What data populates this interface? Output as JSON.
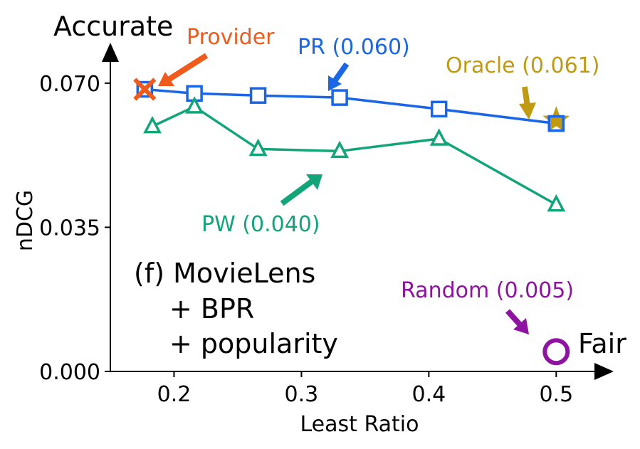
{
  "chart_data": {
    "type": "scatter",
    "title": "",
    "panel_label": "(f) MovieLens",
    "panel_label_lines": [
      "+ BPR",
      "+ popularity"
    ],
    "xlabel": "Least Ratio",
    "ylabel": "nDCG",
    "x_axis_end_label": "Fair",
    "y_axis_end_label": "Accurate",
    "xlim": [
      0.15,
      0.53
    ],
    "ylim": [
      0.0,
      0.0755
    ],
    "xticks": [
      0.2,
      0.3,
      0.4,
      0.5
    ],
    "xtick_labels": [
      "0.2",
      "0.3",
      "0.4",
      "0.5"
    ],
    "yticks": [
      0.0,
      0.035,
      0.07
    ],
    "ytick_labels": [
      "0.000",
      "0.035",
      "0.070"
    ],
    "series": [
      {
        "name": "PR",
        "label": "PR (0.060)",
        "marker": "square",
        "color": "#1a66e6",
        "x": [
          0.177,
          0.216,
          0.266,
          0.33,
          0.408,
          0.5
        ],
        "y": [
          0.0685,
          0.0675,
          0.067,
          0.0665,
          0.0637,
          0.0602
        ]
      },
      {
        "name": "PW",
        "label": "PW (0.040)",
        "marker": "triangle",
        "color": "#13a57a",
        "x": [
          0.183,
          0.216,
          0.266,
          0.33,
          0.408,
          0.5
        ],
        "y": [
          0.0595,
          0.0643,
          0.054,
          0.0535,
          0.0565,
          0.0405
        ]
      }
    ],
    "points": [
      {
        "name": "Provider",
        "label": "Provider",
        "marker": "x",
        "color": "#f05a1a",
        "x": 0.177,
        "y": 0.0685
      },
      {
        "name": "Oracle",
        "label": "Oracle (0.061)",
        "marker": "star",
        "color": "#c09a10",
        "x": 0.5,
        "y": 0.061
      },
      {
        "name": "Random",
        "label": "Random (0.005)",
        "marker": "circle",
        "color": "#8e13a0",
        "x": 0.5,
        "y": 0.0048
      }
    ]
  }
}
